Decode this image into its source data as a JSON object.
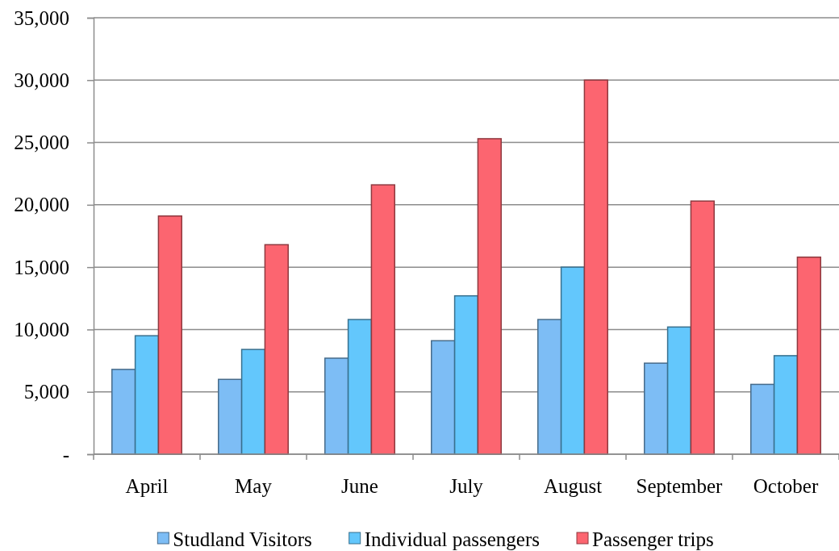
{
  "chart_data": {
    "type": "bar",
    "categories": [
      "April",
      "May",
      "June",
      "July",
      "August",
      "September",
      "October"
    ],
    "series": [
      {
        "name": "Studland Visitors",
        "color": "#7dbdf5",
        "values": [
          6800,
          6000,
          7700,
          9100,
          10800,
          7300,
          5600
        ]
      },
      {
        "name": "Individual passengers",
        "color": "#63c7fc",
        "values": [
          9500,
          8400,
          10800,
          12700,
          15000,
          10200,
          7900
        ]
      },
      {
        "name": "Passenger trips",
        "color": "#fc6570",
        "values": [
          19100,
          16800,
          21600,
          25300,
          30000,
          20300,
          15800
        ]
      }
    ],
    "ylim": [
      0,
      35000
    ],
    "yticks": [
      {
        "value": 0,
        "label": "-"
      },
      {
        "value": 5000,
        "label": "5,000"
      },
      {
        "value": 10000,
        "label": "10,000"
      },
      {
        "value": 15000,
        "label": "15,000"
      },
      {
        "value": 20000,
        "label": "20,000"
      },
      {
        "value": 25000,
        "label": "25,000"
      },
      {
        "value": 30000,
        "label": "30,000"
      },
      {
        "value": 35000,
        "label": "35,000"
      }
    ],
    "grid": "y",
    "legend": "bottom"
  }
}
